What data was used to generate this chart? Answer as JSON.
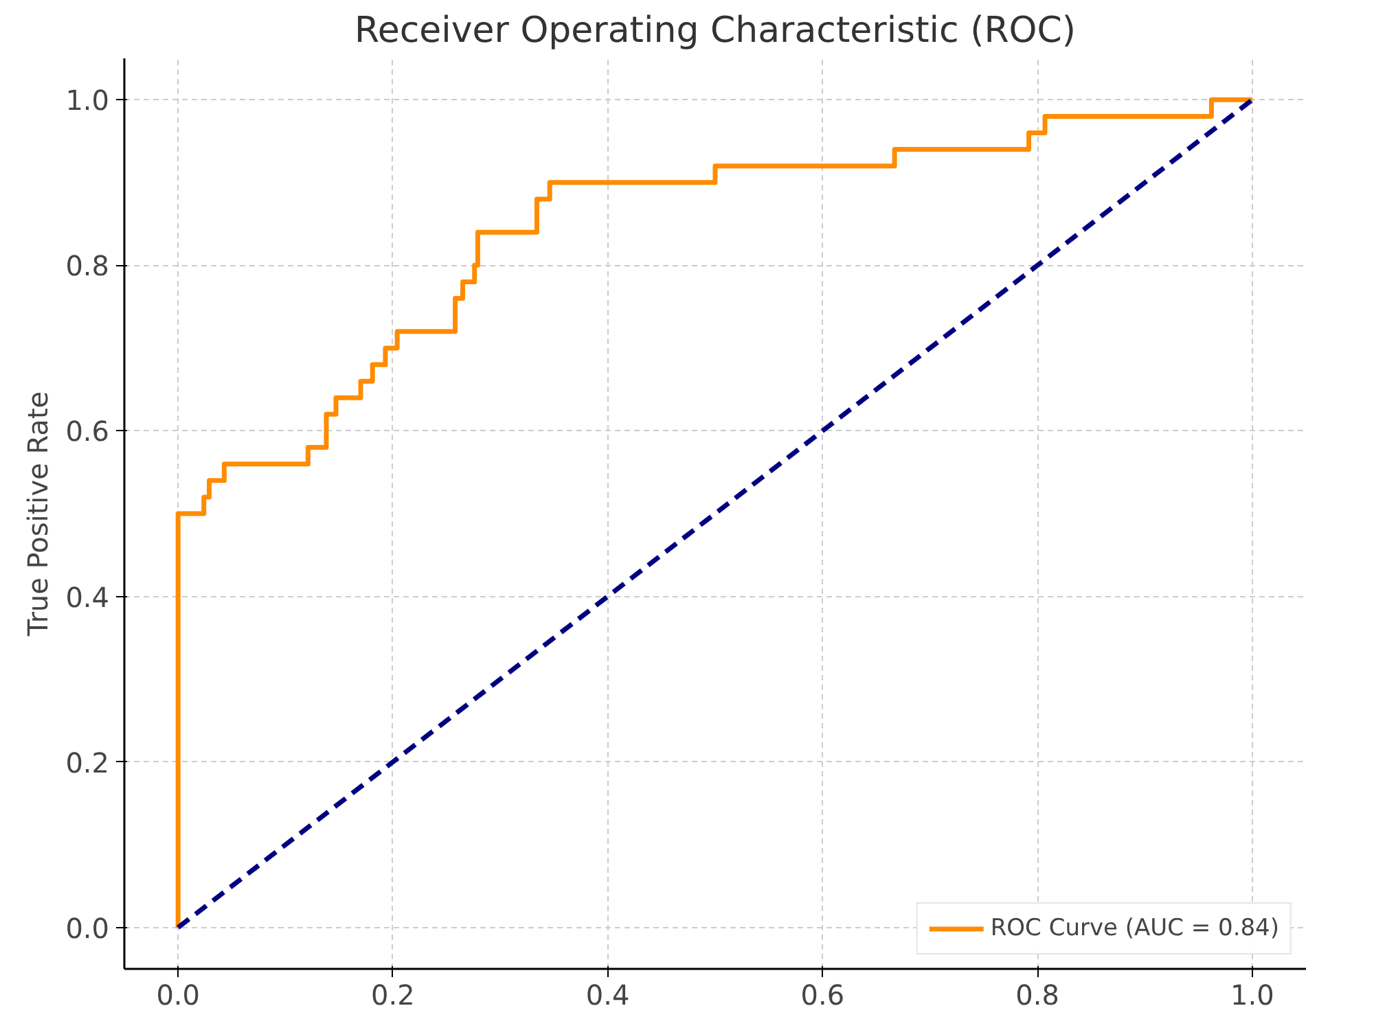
{
  "chart_data": {
    "type": "step",
    "title": "Receiver Operating Characteristic (ROC)",
    "ylabel": "True Positive Rate",
    "xlim": [
      -0.05,
      1.05
    ],
    "ylim": [
      -0.05,
      1.05
    ],
    "xticks": [
      {
        "value": 0,
        "label": "0.0"
      },
      0.2,
      0.4,
      0.6,
      0.8,
      {
        "value": 1,
        "label": "1.0"
      }
    ],
    "yticks": [
      {
        "value": 0,
        "label": "0.0"
      },
      0.2,
      0.4,
      0.6,
      0.8,
      {
        "value": 1,
        "label": "1.0"
      }
    ],
    "grid": true,
    "legend": "bottom right",
    "series": [
      {
        "name": "ROC Curve (AUC = 0.84)",
        "color": "#ff8c00",
        "line_style": "solid",
        "x": [
          0,
          0,
          0.024,
          0.029,
          0.043,
          0.121,
          0.138,
          0.147,
          0.17,
          0.181,
          0.193,
          0.204,
          0.258,
          0.265,
          0.276,
          0.279,
          0.334,
          0.346,
          0.5,
          0.667,
          0.792,
          0.807,
          0.962,
          1.0
        ],
        "values": [
          0,
          0.5,
          0.52,
          0.54,
          0.56,
          0.58,
          0.62,
          0.64,
          0.66,
          0.68,
          0.7,
          0.72,
          0.76,
          0.78,
          0.8,
          0.84,
          0.88,
          0.9,
          0.92,
          0.94,
          0.96,
          0.98,
          1.0,
          1.0
        ]
      },
      {
        "type": "line",
        "color": "#000080",
        "line_style": "dashed",
        "x": [
          0,
          1
        ],
        "values": [
          0,
          1
        ]
      }
    ]
  }
}
